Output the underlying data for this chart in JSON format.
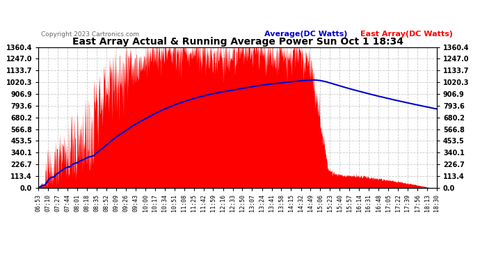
{
  "title": "East Array Actual & Running Average Power Sun Oct 1 18:34",
  "copyright": "Copyright 2023 Cartronics.com",
  "legend_average": "Average(DC Watts)",
  "legend_east": "East Array(DC Watts)",
  "background_color": "#ffffff",
  "plot_bg_color": "#ffffff",
  "grid_color": "#bbbbbb",
  "fill_color": "#ff0000",
  "line_color_average": "#0000cc",
  "ymax": 1360.4,
  "ymin": 0.0,
  "yticks": [
    0.0,
    113.4,
    226.7,
    340.1,
    453.5,
    566.8,
    680.2,
    793.6,
    906.9,
    1020.3,
    1133.7,
    1247.0,
    1360.4
  ],
  "xtick_labels": [
    "06:53",
    "07:10",
    "07:27",
    "07:44",
    "08:01",
    "08:18",
    "08:35",
    "08:52",
    "09:09",
    "09:26",
    "09:43",
    "10:00",
    "10:17",
    "10:34",
    "10:51",
    "11:08",
    "11:25",
    "11:42",
    "11:59",
    "12:16",
    "12:33",
    "12:50",
    "13:07",
    "13:24",
    "13:41",
    "13:58",
    "14:15",
    "14:32",
    "14:49",
    "15:06",
    "15:23",
    "15:40",
    "15:57",
    "16:14",
    "16:31",
    "16:48",
    "17:05",
    "17:22",
    "17:39",
    "17:56",
    "18:13",
    "18:30"
  ]
}
